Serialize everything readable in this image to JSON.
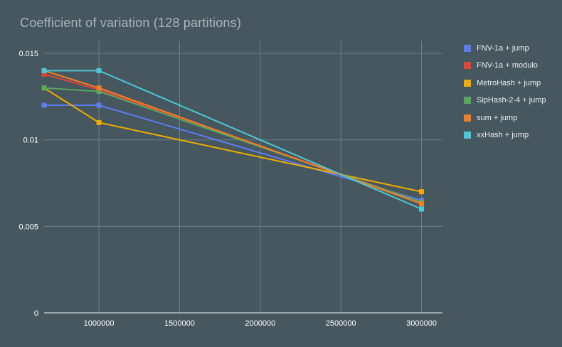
{
  "header": {
    "title": "Coefficient of variation (128 partitions)"
  },
  "chart_data": {
    "type": "line",
    "title": "Coefficient of variation (128 partitions)",
    "xlabel": "",
    "ylabel": "",
    "xlim": [
      660000,
      3130000
    ],
    "ylim": [
      0,
      0.0157
    ],
    "x_ticks": [
      1000000,
      1500000,
      2000000,
      2500000,
      3000000
    ],
    "x_tick_labels": [
      "1000000",
      "1500000",
      "2000000",
      "2500000",
      "3000000"
    ],
    "y_ticks": [
      0,
      0.005,
      0.01,
      0.015
    ],
    "y_tick_labels": [
      "0",
      "0.005",
      "0.01",
      "0.015"
    ],
    "grid": true,
    "legend_position": "right",
    "background_color": "#47575f",
    "grid_color": "#6f7e86",
    "axis_color": "#e8eced",
    "tick_color": "#ffffff",
    "title_color": "#a9b4ba",
    "marker": "square",
    "series": [
      {
        "name": "FNV-1a + jump",
        "color": "#5e7cf2",
        "points": [
          [
            660000,
            0.012
          ],
          [
            1000000,
            0.012
          ],
          [
            3000000,
            0.0065
          ]
        ]
      },
      {
        "name": "FNV-1a + modulo",
        "color": "#e0453a",
        "points": [
          [
            660000,
            0.0138
          ],
          [
            1000000,
            0.0129
          ],
          [
            3000000,
            0.0064
          ]
        ]
      },
      {
        "name": "MetroHash + jump",
        "color": "#f0ad00",
        "points": [
          [
            660000,
            0.013
          ],
          [
            1000000,
            0.011
          ],
          [
            3000000,
            0.007
          ]
        ]
      },
      {
        "name": "SipHash-2-4 + jump",
        "color": "#57a861",
        "points": [
          [
            660000,
            0.013
          ],
          [
            1000000,
            0.0128
          ],
          [
            3000000,
            0.0064
          ]
        ]
      },
      {
        "name": "sum + jump",
        "color": "#f07e26",
        "points": [
          [
            660000,
            0.014
          ],
          [
            1000000,
            0.013
          ],
          [
            3000000,
            0.0063
          ]
        ]
      },
      {
        "name": "xxHash + jump",
        "color": "#4dc8d6",
        "points": [
          [
            660000,
            0.014
          ],
          [
            1000000,
            0.014
          ],
          [
            3000000,
            0.006
          ]
        ]
      }
    ]
  }
}
